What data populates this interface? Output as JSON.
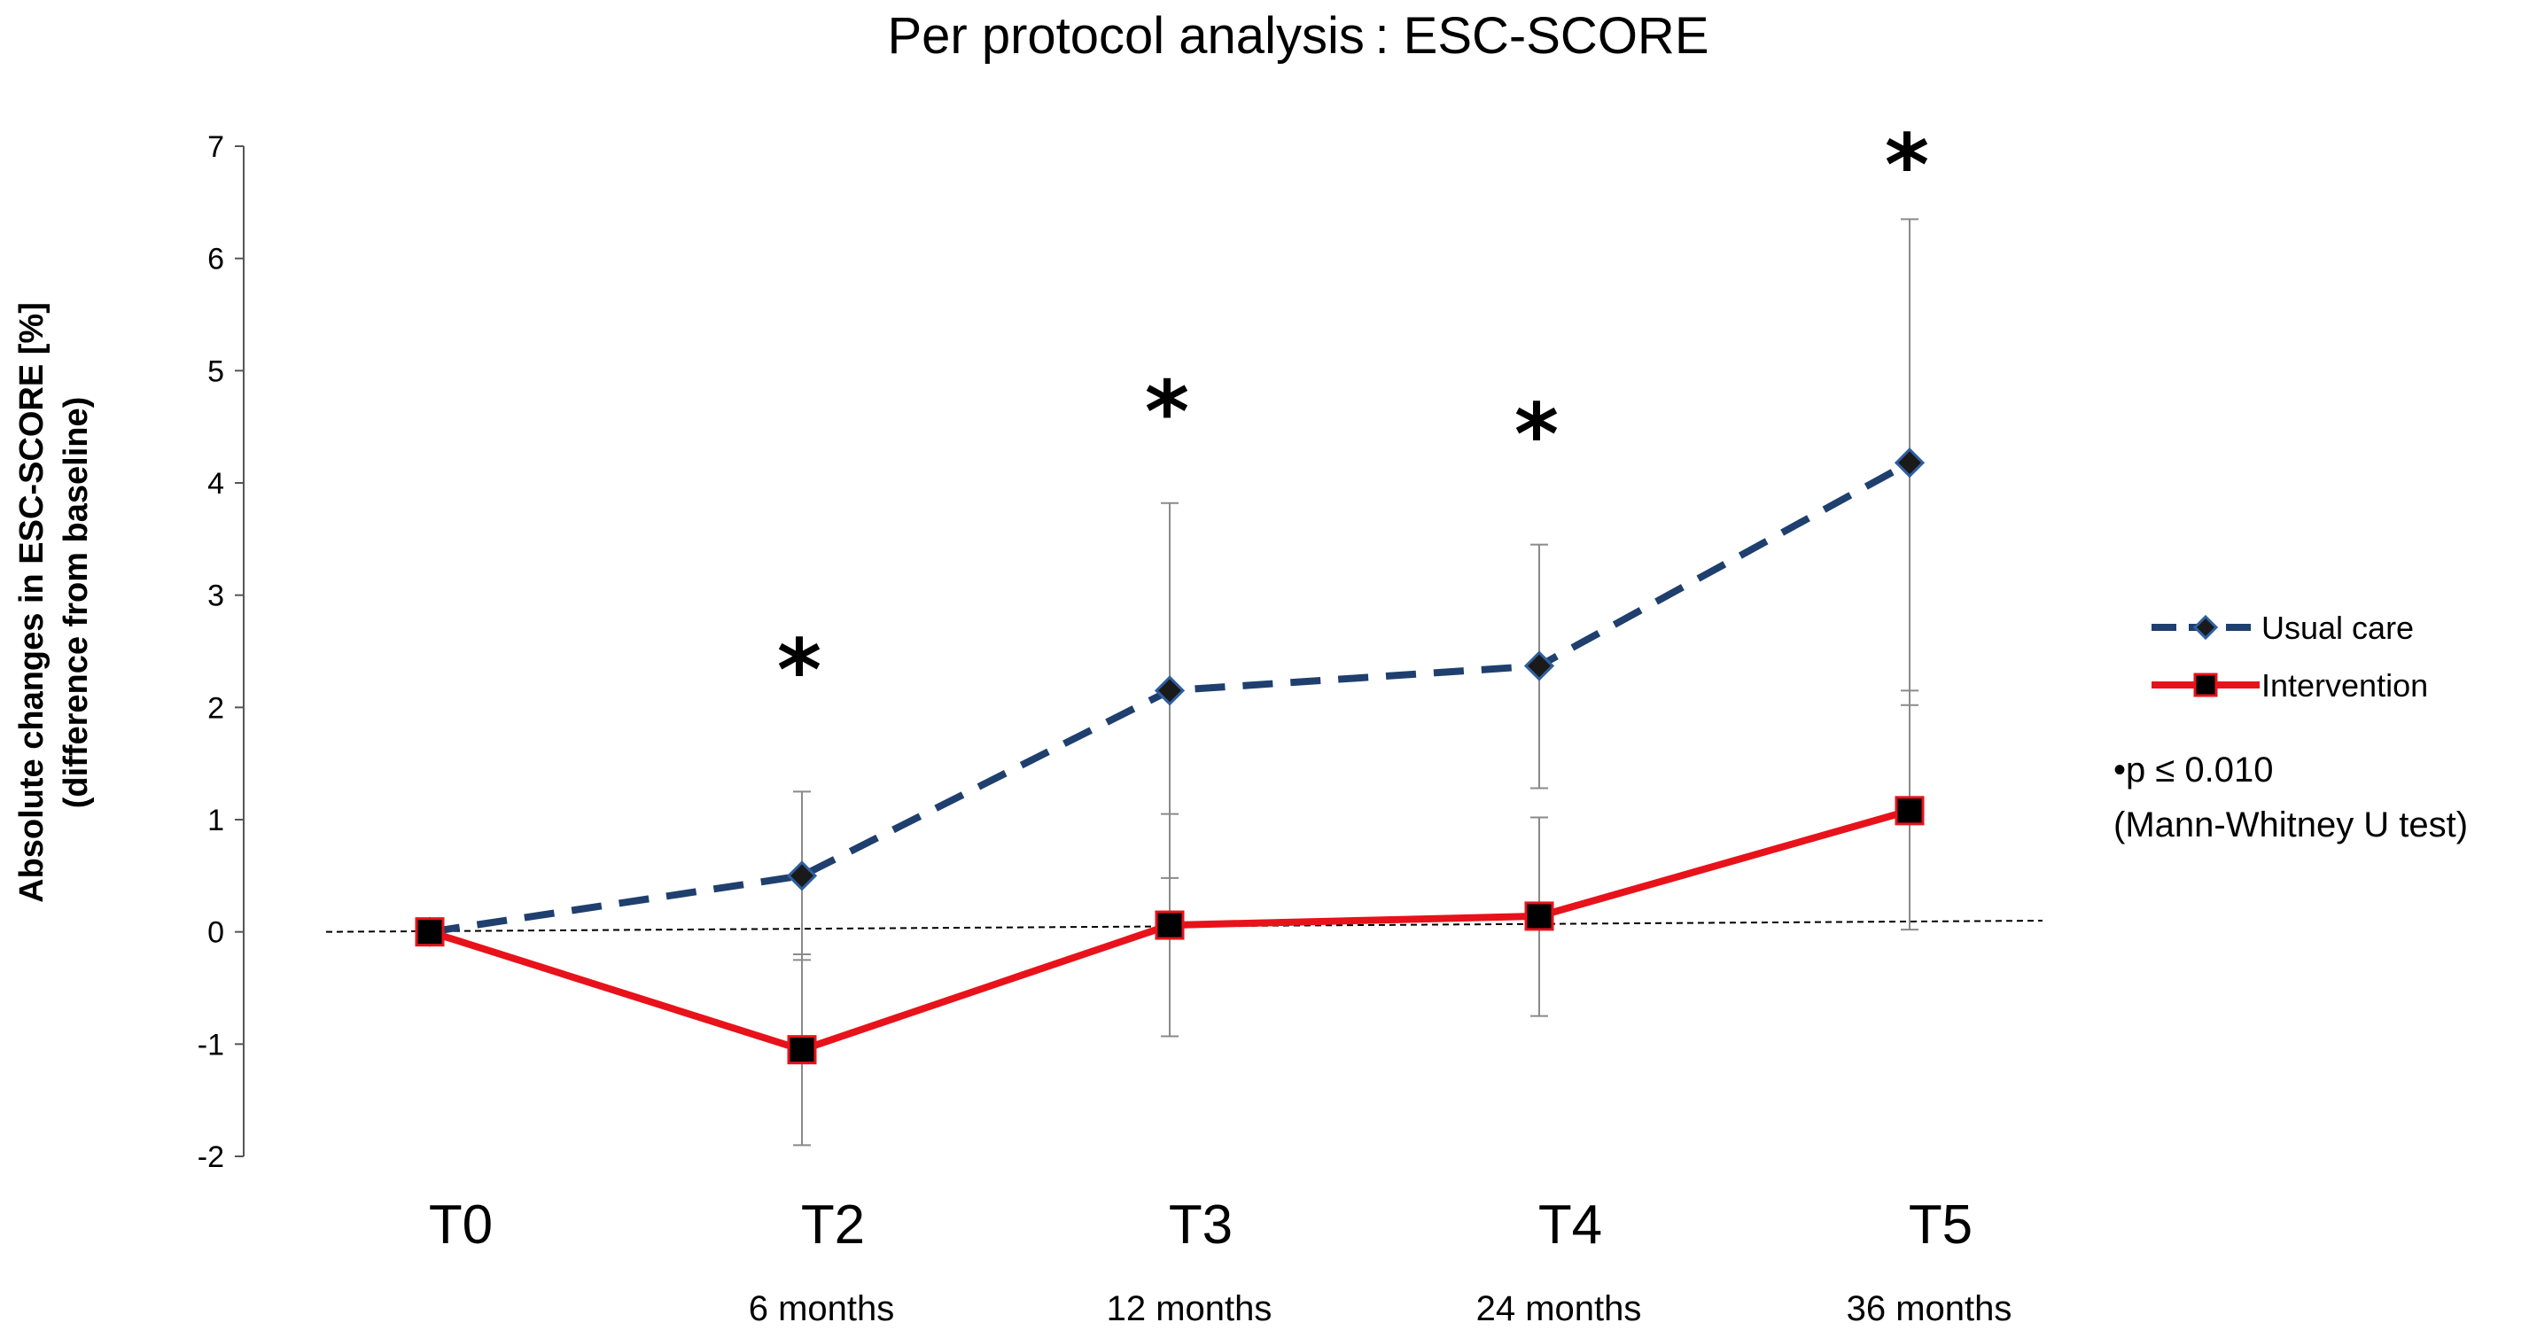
{
  "chart_data": {
    "type": "line",
    "title": "Per protocol analysis : ESC-SCORE",
    "ylabel_line1": "Absolute changes in ESC-SCORE [%]",
    "ylabel_line2": "(difference from baseline)",
    "xlabel": "",
    "ylim": [
      -2,
      7
    ],
    "yticks": [
      -2,
      -1,
      0,
      1,
      2,
      3,
      4,
      5,
      6,
      7
    ],
    "categories": [
      "T0",
      "T2",
      "T3",
      "T4",
      "T5"
    ],
    "category_sublabels": [
      "",
      "6 months",
      "12 months",
      "24 months",
      "36 months"
    ],
    "series": [
      {
        "name": "Usual care",
        "color": "#1F3F6E",
        "marker": "diamond",
        "line_style": "dashed",
        "values": [
          0,
          0.5,
          2.15,
          2.37,
          4.18
        ],
        "error_low": [
          0,
          -0.25,
          0.48,
          1.28,
          2.02
        ],
        "error_high": [
          0,
          1.25,
          3.82,
          3.45,
          6.35
        ]
      },
      {
        "name": "Intervention",
        "color": "#E8121B",
        "marker": "square",
        "line_style": "solid",
        "values": [
          0,
          -1.05,
          0.06,
          0.14,
          1.08
        ],
        "error_low": [
          0,
          -1.9,
          -0.93,
          -0.75,
          0.02
        ],
        "error_high": [
          0,
          -0.2,
          1.05,
          1.02,
          2.15
        ]
      }
    ],
    "reference_line": {
      "y_start": 0,
      "y_end": 0.1,
      "style": "dotted"
    },
    "significance_markers": [
      {
        "category": "T2",
        "symbol": "*",
        "y": 2.5
      },
      {
        "category": "T3",
        "symbol": "*",
        "y": 4.8
      },
      {
        "category": "T4",
        "symbol": "*",
        "y": 4.6
      },
      {
        "category": "T5",
        "symbol": "*",
        "y": 7.0
      }
    ],
    "legend": {
      "position": "right",
      "entries": [
        "Usual care",
        "Intervention"
      ]
    },
    "annotation": {
      "line1": "•p ≤ 0.010",
      "line2": "(Mann-Whitney U test)"
    },
    "grid": false
  }
}
